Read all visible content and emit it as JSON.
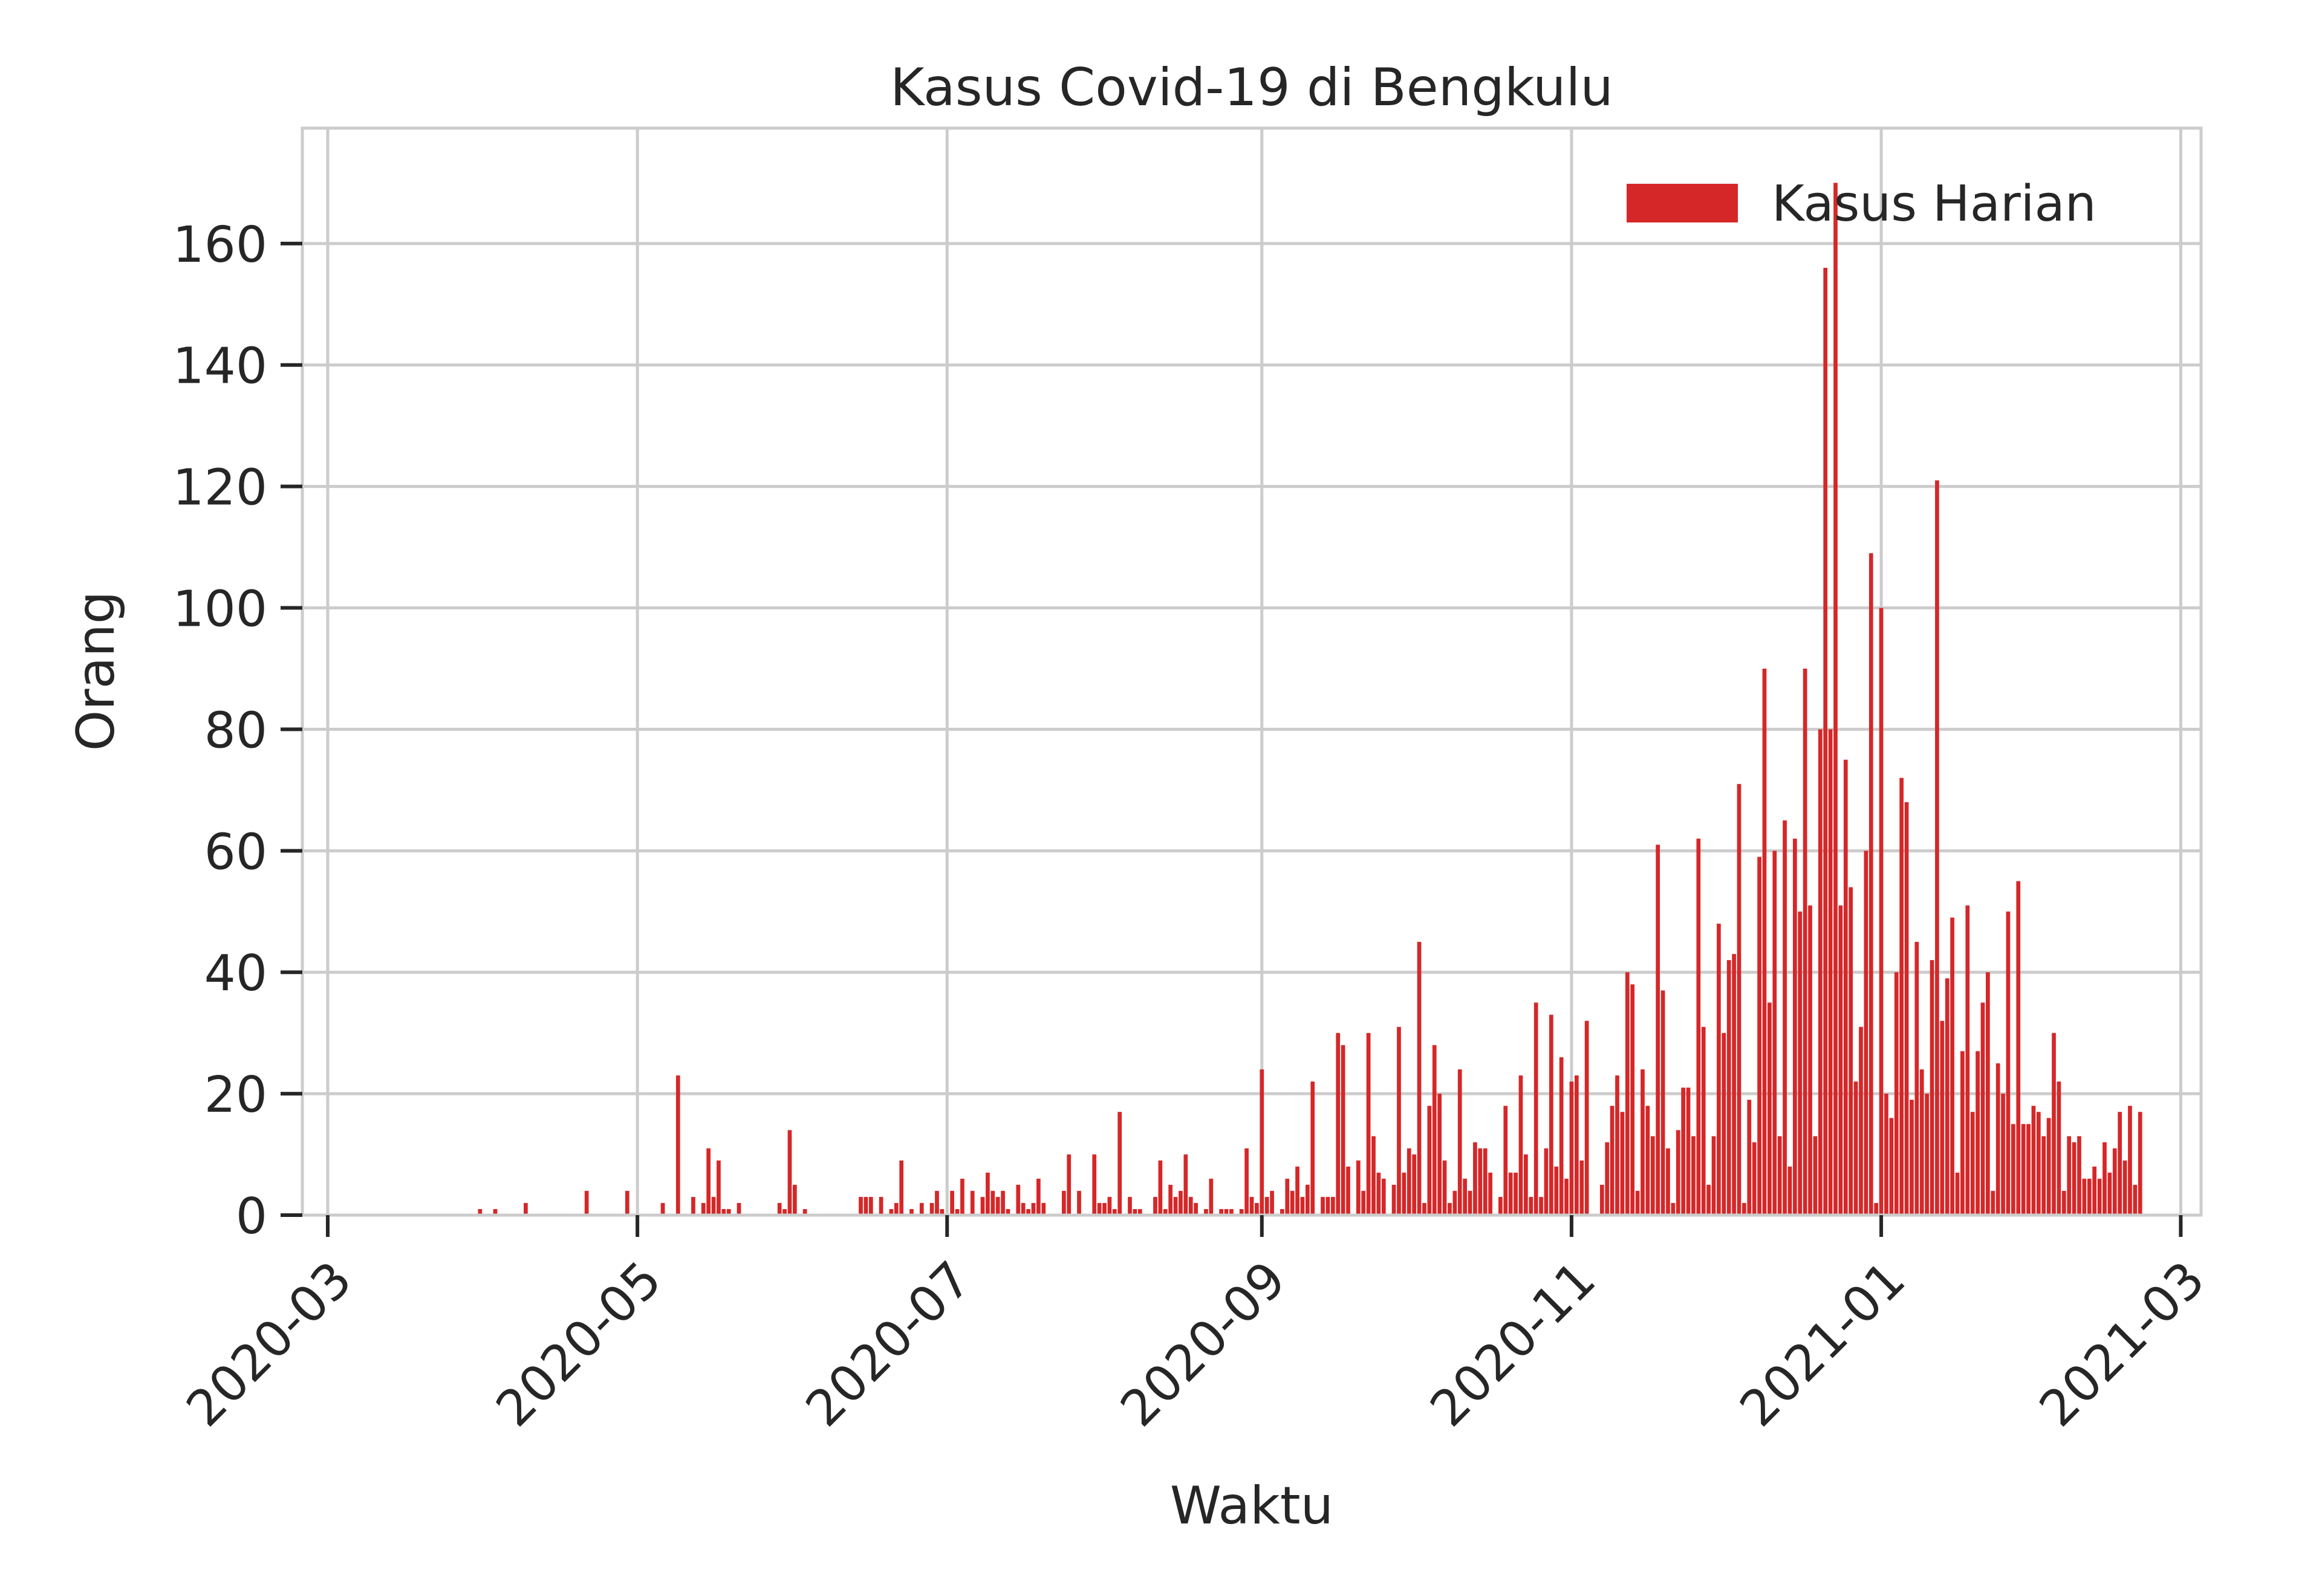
{
  "chart_data": {
    "type": "bar",
    "title": "Kasus Covid-19 di Bengkulu",
    "xlabel": "Waktu",
    "ylabel": "Orang",
    "x_type": "date",
    "xlim": [
      "2020-02-25",
      "2021-03-05"
    ],
    "ylim": [
      0,
      179
    ],
    "grid": true,
    "legend_position": "top-right",
    "x_ticks": [
      "2020-03-01",
      "2020-05-01",
      "2020-07-01",
      "2020-09-01",
      "2020-11-01",
      "2021-01-01",
      "2021-03-01"
    ],
    "x_tick_labels": [
      "2020-03",
      "2020-05",
      "2020-07",
      "2020-09",
      "2020-11",
      "2021-01",
      "2021-03"
    ],
    "y_ticks": [
      0,
      20,
      40,
      60,
      80,
      100,
      120,
      140,
      160
    ],
    "y_tick_labels": [
      "0",
      "20",
      "40",
      "60",
      "80",
      "100",
      "120",
      "140",
      "160"
    ],
    "series": [
      {
        "name": "Kasus Harian",
        "color": "#d62728",
        "start_date": "2020-03-01",
        "values": [
          0,
          0,
          0,
          0,
          0,
          0,
          0,
          0,
          0,
          0,
          0,
          0,
          0,
          0,
          0,
          0,
          0,
          0,
          0,
          0,
          0,
          0,
          0,
          0,
          0,
          0,
          0,
          0,
          0,
          0,
          1,
          0,
          0,
          1,
          0,
          0,
          0,
          0,
          0,
          2,
          0,
          0,
          0,
          0,
          0,
          0,
          0,
          0,
          0,
          0,
          0,
          4,
          0,
          0,
          0,
          0,
          0,
          0,
          0,
          4,
          0,
          0,
          0,
          0,
          0,
          0,
          2,
          0,
          0,
          23,
          0,
          0,
          3,
          0,
          2,
          11,
          3,
          9,
          1,
          1,
          0,
          2,
          0,
          0,
          0,
          0,
          0,
          0,
          0,
          2,
          1,
          14,
          5,
          0,
          1,
          0,
          0,
          0,
          0,
          0,
          0,
          0,
          0,
          0,
          0,
          3,
          3,
          3,
          0,
          3,
          0,
          1,
          2,
          9,
          0,
          1,
          0,
          2,
          0,
          2,
          4,
          1,
          0,
          4,
          1,
          6,
          0,
          4,
          0,
          3,
          7,
          4,
          3,
          4,
          1,
          0,
          5,
          2,
          1,
          2,
          6,
          2,
          0,
          0,
          0,
          4,
          10,
          0,
          4,
          0,
          0,
          10,
          2,
          2,
          3,
          1,
          17,
          0,
          3,
          1,
          1,
          0,
          0,
          3,
          9,
          1,
          5,
          3,
          4,
          10,
          3,
          2,
          0,
          1,
          6,
          0,
          1,
          1,
          1,
          0,
          1,
          11,
          3,
          2,
          24,
          3,
          4,
          0,
          1,
          6,
          4,
          8,
          3,
          5,
          22,
          0,
          3,
          3,
          3,
          30,
          28,
          8,
          0,
          9,
          4,
          30,
          13,
          7,
          6,
          0,
          5,
          31,
          7,
          11,
          10,
          45,
          2,
          18,
          28,
          20,
          9,
          2,
          4,
          24,
          6,
          4,
          12,
          11,
          11,
          7,
          0,
          3,
          18,
          7,
          7,
          23,
          10,
          3,
          35,
          3,
          11,
          33,
          8,
          26,
          6,
          22,
          23,
          9,
          32,
          0,
          0,
          5,
          12,
          18,
          23,
          17,
          40,
          38,
          4,
          24,
          18,
          13,
          61,
          37,
          11,
          2,
          14,
          21,
          21,
          13,
          62,
          31,
          5,
          13,
          48,
          30,
          42,
          43,
          71,
          2,
          19,
          12,
          59,
          90,
          35,
          60,
          13,
          65,
          8,
          62,
          50,
          90,
          51,
          13,
          80,
          156,
          80,
          170,
          51,
          75,
          54,
          22,
          31,
          60,
          109,
          2,
          100,
          20,
          16,
          40,
          72,
          68,
          19,
          45,
          24,
          20,
          42,
          121,
          32,
          39,
          49,
          7,
          27,
          51,
          17,
          27,
          35,
          40,
          4,
          25,
          20,
          50,
          15,
          55,
          15,
          15,
          18,
          17,
          13,
          16,
          30,
          22,
          4,
          13,
          12,
          13,
          6,
          6,
          8,
          6,
          12,
          7,
          11,
          17,
          9,
          18,
          5,
          17
        ]
      }
    ]
  }
}
